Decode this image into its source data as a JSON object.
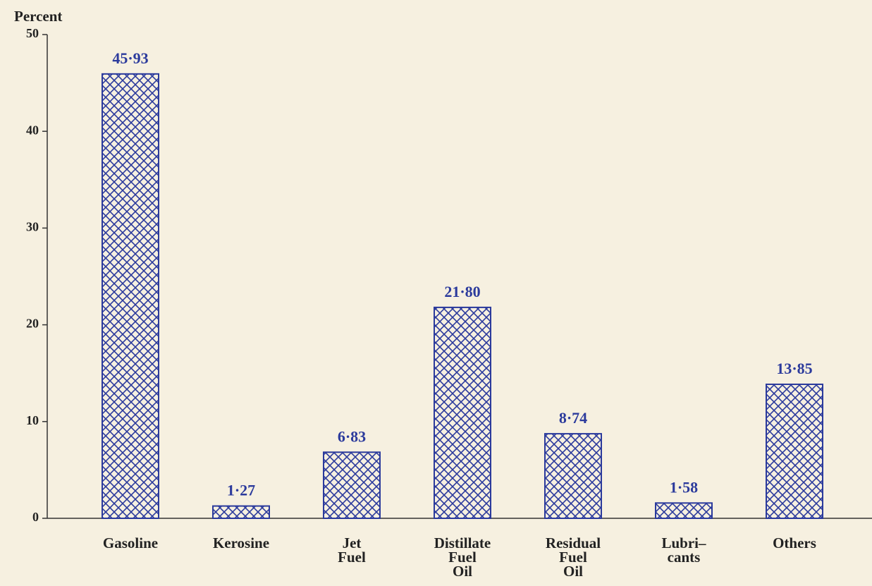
{
  "chart_data": {
    "type": "bar",
    "y_label": "Percent",
    "categories": [
      "Gasoline",
      "Kerosine",
      "Jet\nFuel",
      "Distillate\nFuel\nOil",
      "Residual\nFuel\nOil",
      "Lubri–\ncants",
      "Others"
    ],
    "values": [
      45.93,
      1.27,
      6.83,
      21.8,
      8.74,
      1.58,
      13.85
    ],
    "value_labels": [
      "45·93",
      "1·27",
      "6·83",
      "21·80",
      "8·74",
      "1·58",
      "13·85"
    ],
    "color": "#2b3a9c",
    "ylim": [
      0,
      50
    ],
    "yticks": [
      0,
      10,
      20,
      30,
      40,
      50
    ],
    "grid": false
  }
}
